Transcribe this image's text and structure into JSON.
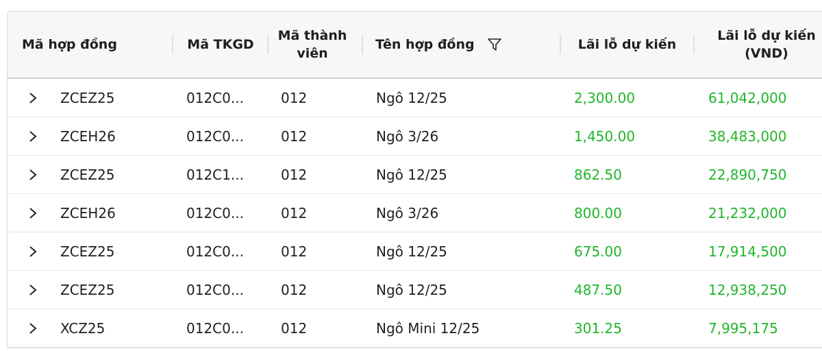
{
  "columns": {
    "contract_code": "Mã hợp đồng",
    "tkgd_code": "Mã TKGD",
    "member_code": "Mã thành viên",
    "contract_name": "Tên hợp đồng",
    "expected_pnl": "Lãi lỗ dự kiến",
    "expected_pnl_vnd": "Lãi lỗ dự kiến (VND)"
  },
  "colors": {
    "positive": "#1fb52a"
  },
  "icons": {
    "row_expand": "chevron-right-icon",
    "column_filter": "filter-icon"
  },
  "rows": [
    {
      "contract_code": "ZCEZ25",
      "tkgd_code": "012C0...",
      "member_code": "012",
      "contract_name": "Ngô 12/25",
      "expected_pnl": "2,300.00",
      "expected_pnl_vnd": "61,042,000"
    },
    {
      "contract_code": "ZCEH26",
      "tkgd_code": "012C0...",
      "member_code": "012",
      "contract_name": "Ngô 3/26",
      "expected_pnl": "1,450.00",
      "expected_pnl_vnd": "38,483,000"
    },
    {
      "contract_code": "ZCEZ25",
      "tkgd_code": "012C1...",
      "member_code": "012",
      "contract_name": "Ngô 12/25",
      "expected_pnl": "862.50",
      "expected_pnl_vnd": "22,890,750"
    },
    {
      "contract_code": "ZCEH26",
      "tkgd_code": "012C0...",
      "member_code": "012",
      "contract_name": "Ngô 3/26",
      "expected_pnl": "800.00",
      "expected_pnl_vnd": "21,232,000"
    },
    {
      "contract_code": "ZCEZ25",
      "tkgd_code": "012C0...",
      "member_code": "012",
      "contract_name": "Ngô 12/25",
      "expected_pnl": "675.00",
      "expected_pnl_vnd": "17,914,500"
    },
    {
      "contract_code": "ZCEZ25",
      "tkgd_code": "012C0...",
      "member_code": "012",
      "contract_name": "Ngô 12/25",
      "expected_pnl": "487.50",
      "expected_pnl_vnd": "12,938,250"
    },
    {
      "contract_code": "XCZ25",
      "tkgd_code": "012C0...",
      "member_code": "012",
      "contract_name": "Ngô Mini 12/25",
      "expected_pnl": "301.25",
      "expected_pnl_vnd": "7,995,175"
    }
  ]
}
